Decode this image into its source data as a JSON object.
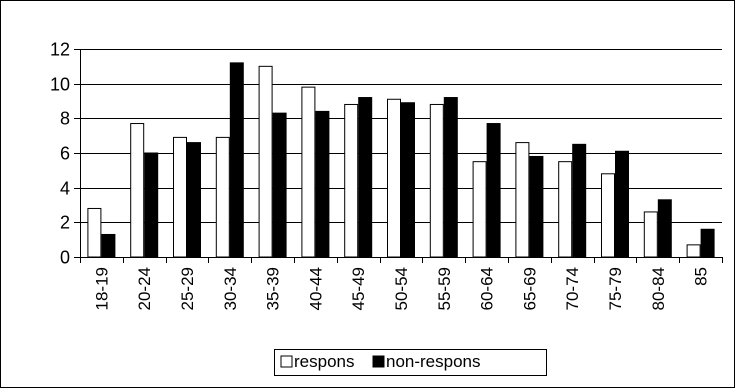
{
  "chart_data": {
    "type": "bar",
    "title": "",
    "xlabel": "",
    "ylabel": "",
    "ylim": [
      0,
      12
    ],
    "yticks": [
      0,
      2,
      4,
      6,
      8,
      10,
      12
    ],
    "grid": "horizontal",
    "legend_position": "bottom",
    "categories": [
      "18-19",
      "20-24",
      "25-29",
      "30-34",
      "35-39",
      "40-44",
      "45-49",
      "50-54",
      "55-59",
      "60-64",
      "65-69",
      "70-74",
      "75-79",
      "80-84",
      "85"
    ],
    "series": [
      {
        "name": "respons",
        "fill": "#ffffff",
        "values": [
          2.8,
          7.7,
          6.9,
          6.9,
          11.0,
          9.8,
          8.8,
          9.1,
          8.8,
          5.5,
          6.6,
          5.5,
          4.8,
          2.6,
          0.7
        ]
      },
      {
        "name": "non-respons",
        "fill": "#000000",
        "values": [
          1.3,
          6.0,
          6.6,
          11.2,
          8.3,
          8.4,
          9.2,
          8.9,
          9.2,
          7.7,
          5.8,
          6.5,
          6.1,
          3.3,
          1.6
        ]
      }
    ]
  }
}
